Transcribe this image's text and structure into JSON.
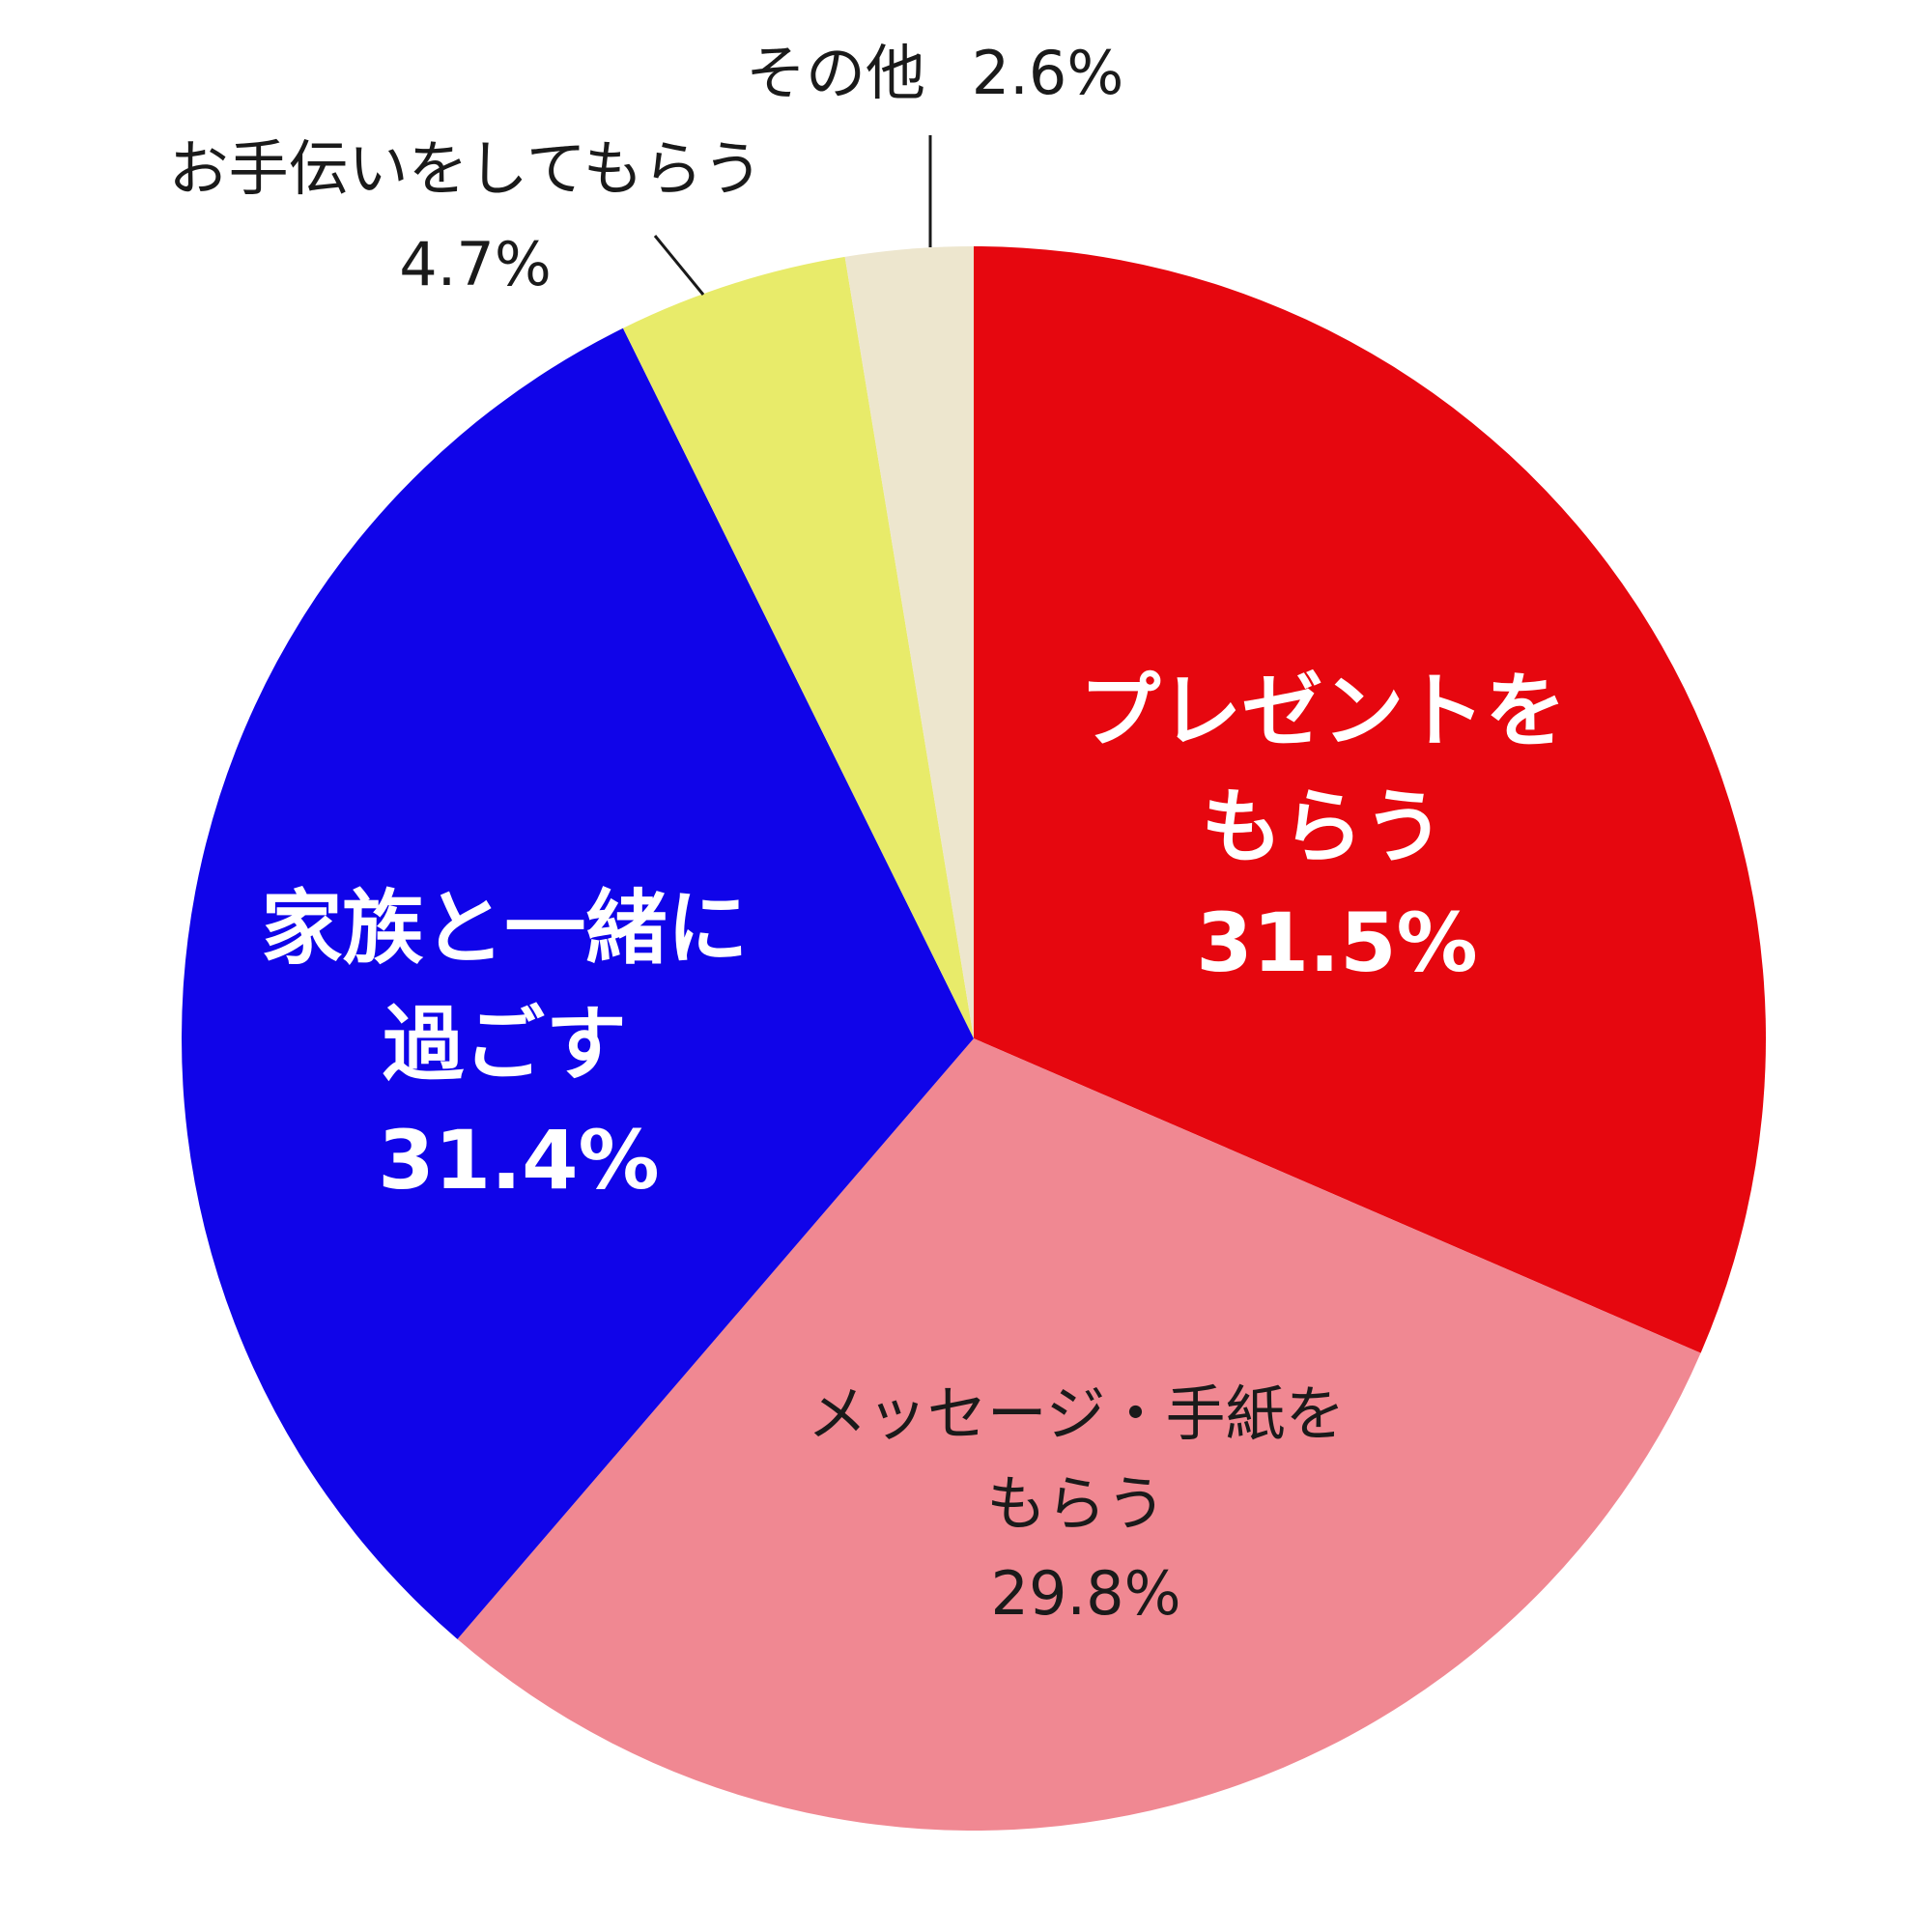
{
  "chart_data": {
    "type": "pie",
    "start": "12 o'clock",
    "direction": "clockwise",
    "slices": [
      {
        "lines": [
          "プレゼントを",
          "もらう"
        ],
        "value_label": "31.5%",
        "value": 31.5,
        "color": "#E6070F",
        "label_color": "#FFFFFF",
        "label_weight": "bold"
      },
      {
        "lines": [
          "メッセージ・手紙を",
          "もらう"
        ],
        "value_label": "29.8%",
        "value": 29.8,
        "color": "#F08892",
        "label_color": "#1A1A1A",
        "label_weight": "normal"
      },
      {
        "lines": [
          "家族と一緒に",
          "過ごす"
        ],
        "value_label": "31.4%",
        "value": 31.4,
        "color": "#1004E9",
        "label_color": "#FFFFFF",
        "label_weight": "bold"
      },
      {
        "lines": [
          "お手伝いをしてもらう"
        ],
        "value_label": "4.7%",
        "value": 4.7,
        "color": "#E8EB6A",
        "label_color": "#1A1A1A",
        "label_weight": "normal"
      },
      {
        "lines": [
          "その他"
        ],
        "value_label": "2.6%",
        "value": 2.6,
        "color": "#EDE6CE",
        "label_color": "#1A1A1A",
        "label_weight": "normal"
      }
    ]
  }
}
